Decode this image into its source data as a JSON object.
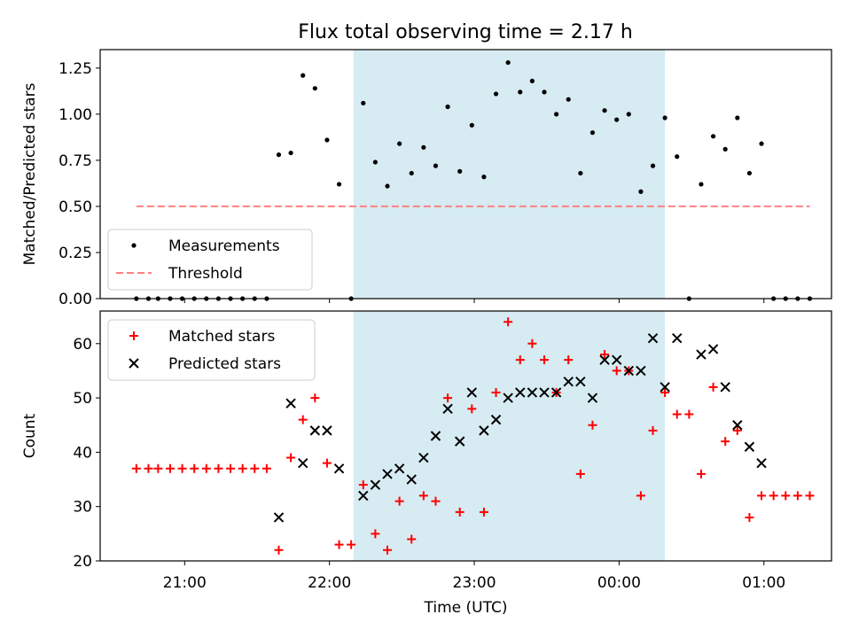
{
  "chart_data": [
    {
      "type": "scatter",
      "title": "Flux total observing time = 2.17 h",
      "xlabel": "",
      "ylabel": "Matched/Predicted stars",
      "ylim": [
        0,
        1.35
      ],
      "xlim": [
        "20:25",
        "01:28"
      ],
      "y_ticks": [
        "0.00",
        "0.25",
        "0.50",
        "0.75",
        "1.00",
        "1.25"
      ],
      "y_tick_values": [
        0,
        0.25,
        0.5,
        0.75,
        1.0,
        1.25
      ],
      "highlight_span": {
        "start": "22:10",
        "end": "00:19",
        "color": "#add8e6"
      },
      "legend_position": "lower-left",
      "series": [
        {
          "name": "Measurements",
          "marker": "dot",
          "color": "#000000",
          "points": [
            [
              "20:40",
              0.0
            ],
            [
              "20:45",
              0.0
            ],
            [
              "20:49",
              0.0
            ],
            [
              "20:54",
              0.0
            ],
            [
              "20:59",
              0.0
            ],
            [
              "21:04",
              0.0
            ],
            [
              "21:09",
              0.0
            ],
            [
              "21:14",
              0.0
            ],
            [
              "21:19",
              0.0
            ],
            [
              "21:24",
              0.0
            ],
            [
              "21:29",
              0.0
            ],
            [
              "21:34",
              0.0
            ],
            [
              "21:39",
              0.78
            ],
            [
              "21:44",
              0.79
            ],
            [
              "21:49",
              1.21
            ],
            [
              "21:54",
              1.14
            ],
            [
              "21:59",
              0.86
            ],
            [
              "22:04",
              0.62
            ],
            [
              "22:09",
              0.0
            ],
            [
              "22:14",
              1.06
            ],
            [
              "22:19",
              0.74
            ],
            [
              "22:24",
              0.61
            ],
            [
              "22:29",
              0.84
            ],
            [
              "22:34",
              0.68
            ],
            [
              "22:39",
              0.82
            ],
            [
              "22:44",
              0.72
            ],
            [
              "22:49",
              1.04
            ],
            [
              "22:54",
              0.69
            ],
            [
              "22:59",
              0.94
            ],
            [
              "23:04",
              0.66
            ],
            [
              "23:09",
              1.11
            ],
            [
              "23:14",
              1.28
            ],
            [
              "23:19",
              1.12
            ],
            [
              "23:24",
              1.18
            ],
            [
              "23:29",
              1.12
            ],
            [
              "23:34",
              1.0
            ],
            [
              "23:39",
              1.08
            ],
            [
              "23:44",
              0.68
            ],
            [
              "23:49",
              0.9
            ],
            [
              "23:54",
              1.02
            ],
            [
              "23:59",
              0.97
            ],
            [
              "00:04",
              1.0
            ],
            [
              "00:09",
              0.58
            ],
            [
              "00:14",
              0.72
            ],
            [
              "00:19",
              0.98
            ],
            [
              "00:24",
              0.77
            ],
            [
              "00:29",
              0.0
            ],
            [
              "00:34",
              0.62
            ],
            [
              "00:39",
              0.88
            ],
            [
              "00:44",
              0.81
            ],
            [
              "00:49",
              0.98
            ],
            [
              "00:54",
              0.68
            ],
            [
              "00:59",
              0.84
            ],
            [
              "01:04",
              0.0
            ],
            [
              "01:09",
              0.0
            ],
            [
              "01:14",
              0.0
            ],
            [
              "01:19",
              0.0
            ]
          ]
        },
        {
          "name": "Threshold",
          "line": "dashed",
          "color": "#ff7f7f",
          "points": [
            [
              "20:40",
              0.5
            ],
            [
              "01:19",
              0.5
            ]
          ]
        }
      ]
    },
    {
      "type": "scatter",
      "title": "",
      "xlabel": "Time (UTC)",
      "ylabel": "Count",
      "ylim": [
        20,
        66
      ],
      "xlim": [
        "20:25",
        "01:28"
      ],
      "x_ticks": [
        "21:00",
        "22:00",
        "23:00",
        "00:00",
        "01:00"
      ],
      "y_ticks": [
        "20",
        "30",
        "40",
        "50",
        "60"
      ],
      "y_tick_values": [
        20,
        30,
        40,
        50,
        60
      ],
      "highlight_span": {
        "start": "22:10",
        "end": "00:19",
        "color": "#add8e6"
      },
      "legend_position": "upper-left",
      "series": [
        {
          "name": "Matched stars",
          "marker": "plus",
          "color": "#ff0000",
          "points": [
            [
              "20:40",
              37
            ],
            [
              "20:45",
              37
            ],
            [
              "20:49",
              37
            ],
            [
              "20:54",
              37
            ],
            [
              "20:59",
              37
            ],
            [
              "21:04",
              37
            ],
            [
              "21:09",
              37
            ],
            [
              "21:14",
              37
            ],
            [
              "21:19",
              37
            ],
            [
              "21:24",
              37
            ],
            [
              "21:29",
              37
            ],
            [
              "21:34",
              37
            ],
            [
              "21:39",
              22
            ],
            [
              "21:44",
              39
            ],
            [
              "21:49",
              46
            ],
            [
              "21:54",
              50
            ],
            [
              "21:59",
              38
            ],
            [
              "22:04",
              23
            ],
            [
              "22:09",
              23
            ],
            [
              "22:14",
              34
            ],
            [
              "22:19",
              25
            ],
            [
              "22:24",
              22
            ],
            [
              "22:29",
              31
            ],
            [
              "22:34",
              24
            ],
            [
              "22:39",
              32
            ],
            [
              "22:44",
              31
            ],
            [
              "22:49",
              50
            ],
            [
              "22:54",
              29
            ],
            [
              "22:59",
              48
            ],
            [
              "23:04",
              29
            ],
            [
              "23:09",
              51
            ],
            [
              "23:14",
              64
            ],
            [
              "23:19",
              57
            ],
            [
              "23:24",
              60
            ],
            [
              "23:29",
              57
            ],
            [
              "23:34",
              51
            ],
            [
              "23:39",
              57
            ],
            [
              "23:44",
              36
            ],
            [
              "23:49",
              45
            ],
            [
              "23:54",
              58
            ],
            [
              "23:59",
              55
            ],
            [
              "00:04",
              55
            ],
            [
              "00:09",
              32
            ],
            [
              "00:14",
              44
            ],
            [
              "00:19",
              51
            ],
            [
              "00:24",
              47
            ],
            [
              "00:29",
              47
            ],
            [
              "00:34",
              36
            ],
            [
              "00:39",
              52
            ],
            [
              "00:44",
              42
            ],
            [
              "00:49",
              44
            ],
            [
              "00:54",
              28
            ],
            [
              "00:59",
              32
            ],
            [
              "01:04",
              32
            ],
            [
              "01:09",
              32
            ],
            [
              "01:14",
              32
            ],
            [
              "01:19",
              32
            ]
          ]
        },
        {
          "name": "Predicted stars",
          "marker": "x",
          "color": "#000000",
          "points": [
            [
              "21:39",
              28
            ],
            [
              "21:44",
              49
            ],
            [
              "21:49",
              38
            ],
            [
              "21:54",
              44
            ],
            [
              "21:59",
              44
            ],
            [
              "22:04",
              37
            ],
            [
              "22:14",
              32
            ],
            [
              "22:19",
              34
            ],
            [
              "22:24",
              36
            ],
            [
              "22:29",
              37
            ],
            [
              "22:34",
              35
            ],
            [
              "22:39",
              39
            ],
            [
              "22:44",
              43
            ],
            [
              "22:49",
              48
            ],
            [
              "22:54",
              42
            ],
            [
              "22:59",
              51
            ],
            [
              "23:04",
              44
            ],
            [
              "23:09",
              46
            ],
            [
              "23:14",
              50
            ],
            [
              "23:19",
              51
            ],
            [
              "23:24",
              51
            ],
            [
              "23:29",
              51
            ],
            [
              "23:34",
              51
            ],
            [
              "23:39",
              53
            ],
            [
              "23:44",
              53
            ],
            [
              "23:49",
              50
            ],
            [
              "23:54",
              57
            ],
            [
              "23:59",
              57
            ],
            [
              "00:04",
              55
            ],
            [
              "00:09",
              55
            ],
            [
              "00:14",
              61
            ],
            [
              "00:19",
              52
            ],
            [
              "00:24",
              61
            ],
            [
              "00:34",
              58
            ],
            [
              "00:39",
              59
            ],
            [
              "00:44",
              52
            ],
            [
              "00:49",
              45
            ],
            [
              "00:54",
              41
            ],
            [
              "00:59",
              38
            ]
          ]
        }
      ]
    }
  ]
}
